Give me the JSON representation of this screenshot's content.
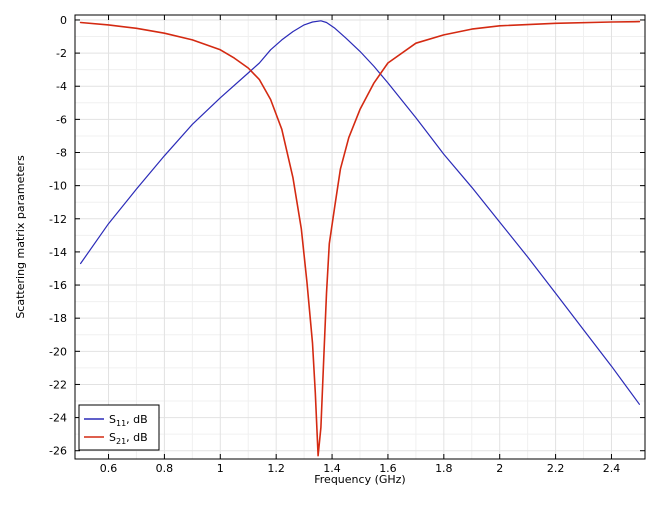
{
  "chart_data": {
    "type": "line",
    "title": "",
    "xlabel": "Frequency (GHz)",
    "ylabel": "Scattering matrix parameters",
    "xlim": [
      0.48,
      2.52
    ],
    "ylim": [
      -26.5,
      0.3
    ],
    "x_ticks": [
      0.6,
      0.8,
      1,
      1.2,
      1.4,
      1.6,
      1.8,
      2,
      2.2,
      2.4
    ],
    "x_tick_labels": [
      "0.6",
      "0.8",
      "1",
      "1.2",
      "1.4",
      "1.6",
      "1.8",
      "2",
      "2.2",
      "2.4"
    ],
    "y_ticks": [
      0,
      -2,
      -4,
      -6,
      -8,
      -10,
      -12,
      -14,
      -16,
      -18,
      -20,
      -22,
      -24,
      -26
    ],
    "y_tick_labels": [
      "0",
      "-2",
      "-4",
      "-6",
      "-8",
      "-10",
      "-12",
      "-14",
      "-16",
      "-18",
      "-20",
      "-22",
      "-24",
      "-26"
    ],
    "grid": true,
    "legend_position": "bottom-left",
    "series": [
      {
        "name": "S11, dB",
        "label_main": "S",
        "label_sub": "11",
        "label_suffix": ", dB",
        "color": "#2b2bb8",
        "x": [
          0.5,
          0.6,
          0.7,
          0.8,
          0.9,
          1.0,
          1.1,
          1.14,
          1.18,
          1.22,
          1.26,
          1.3,
          1.33,
          1.36,
          1.38,
          1.41,
          1.45,
          1.5,
          1.55,
          1.6,
          1.7,
          1.8,
          1.9,
          2.0,
          2.1,
          2.2,
          2.3,
          2.4,
          2.5
        ],
        "y": [
          -14.7,
          -12.3,
          -10.2,
          -8.2,
          -6.3,
          -4.7,
          -3.2,
          -2.6,
          -1.8,
          -1.2,
          -0.7,
          -0.3,
          -0.12,
          -0.05,
          -0.15,
          -0.5,
          -1.1,
          -1.9,
          -2.8,
          -3.8,
          -5.9,
          -8.1,
          -10.1,
          -12.2,
          -14.3,
          -16.5,
          -18.7,
          -20.9,
          -23.2
        ]
      },
      {
        "name": "S21, dB",
        "label_main": "S",
        "label_sub": "21",
        "label_suffix": ", dB",
        "color": "#d42a12",
        "x": [
          0.5,
          0.6,
          0.7,
          0.8,
          0.9,
          1.0,
          1.05,
          1.1,
          1.14,
          1.18,
          1.22,
          1.26,
          1.29,
          1.31,
          1.33,
          1.34,
          1.35,
          1.36,
          1.37,
          1.38,
          1.39,
          1.41,
          1.43,
          1.46,
          1.5,
          1.55,
          1.6,
          1.7,
          1.8,
          1.9,
          2.0,
          2.2,
          2.4,
          2.5
        ],
        "y": [
          -0.15,
          -0.3,
          -0.5,
          -0.8,
          -1.2,
          -1.8,
          -2.3,
          -2.9,
          -3.6,
          -4.8,
          -6.6,
          -9.5,
          -12.6,
          -15.8,
          -19.5,
          -22.5,
          -26.3,
          -24.6,
          -20.5,
          -16.5,
          -13.5,
          -11.2,
          -9.0,
          -7.1,
          -5.4,
          -3.8,
          -2.6,
          -1.4,
          -0.9,
          -0.55,
          -0.35,
          -0.2,
          -0.12,
          -0.1
        ]
      }
    ]
  }
}
